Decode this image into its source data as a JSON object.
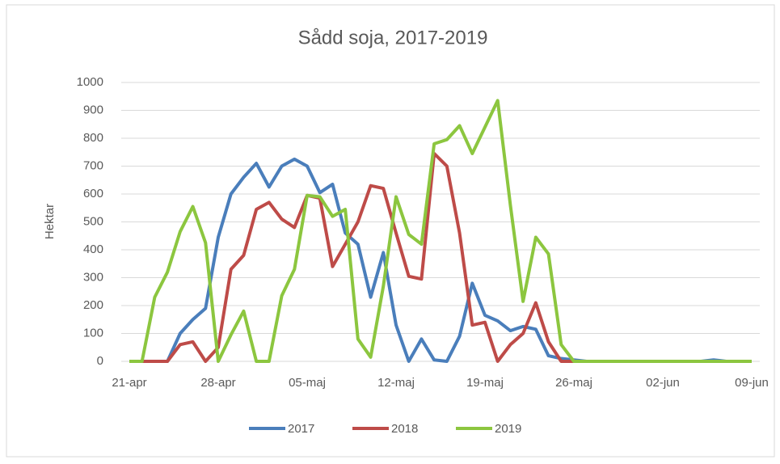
{
  "chart_data": {
    "type": "line",
    "title": "Sådd soja, 2017-2019",
    "y_label": "Hektar",
    "categories": [
      "21-apr",
      null,
      null,
      null,
      null,
      null,
      null,
      "28-apr",
      null,
      null,
      null,
      null,
      null,
      null,
      "05-maj",
      null,
      null,
      null,
      null,
      null,
      null,
      "12-maj",
      null,
      null,
      null,
      null,
      null,
      null,
      "19-maj",
      null,
      null,
      null,
      null,
      null,
      null,
      "26-maj",
      null,
      null,
      null,
      null,
      null,
      null,
      "02-jun",
      null,
      null,
      null,
      null,
      null,
      null,
      "09-jun"
    ],
    "series": [
      {
        "name": "2017",
        "color": "#4a7ebb",
        "values": [
          0,
          0,
          0,
          0,
          100,
          150,
          190,
          445,
          600,
          660,
          710,
          625,
          700,
          725,
          700,
          605,
          635,
          460,
          420,
          230,
          390,
          130,
          0,
          80,
          5,
          0,
          90,
          280,
          165,
          145,
          110,
          125,
          115,
          20,
          10,
          5,
          0,
          0,
          0,
          0,
          0,
          0,
          0,
          0,
          0,
          0,
          5,
          0,
          0,
          0
        ]
      },
      {
        "name": "2018",
        "color": "#be4b48",
        "values": [
          0,
          0,
          0,
          0,
          60,
          70,
          0,
          50,
          330,
          380,
          545,
          570,
          510,
          480,
          595,
          585,
          340,
          420,
          500,
          630,
          620,
          460,
          305,
          295,
          745,
          700,
          460,
          130,
          140,
          0,
          60,
          100,
          210,
          70,
          0,
          0,
          0,
          0,
          0,
          0,
          0,
          0,
          0,
          0,
          0,
          0,
          0,
          0,
          0,
          0
        ]
      },
      {
        "name": "2019",
        "color": "#8cc63f",
        "values": [
          0,
          0,
          230,
          320,
          465,
          555,
          425,
          0,
          95,
          180,
          0,
          0,
          235,
          330,
          595,
          590,
          520,
          545,
          80,
          15,
          270,
          590,
          455,
          420,
          780,
          795,
          845,
          745,
          840,
          935,
          560,
          215,
          445,
          385,
          60,
          0,
          0,
          0,
          0,
          0,
          0,
          0,
          0,
          0,
          0,
          0,
          0,
          0,
          0,
          0
        ]
      }
    ],
    "ylim": [
      0,
      1000
    ],
    "yticks": [
      0,
      100,
      200,
      300,
      400,
      500,
      600,
      700,
      800,
      900,
      1000
    ],
    "grid": true,
    "legend": "bottom"
  }
}
